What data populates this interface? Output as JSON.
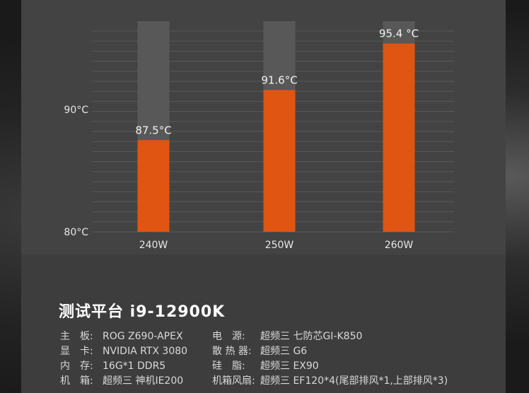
{
  "chart_data": {
    "type": "bar",
    "categories": [
      "240W",
      "250W",
      "260W"
    ],
    "values": [
      87.5,
      91.6,
      95.4
    ],
    "data_labels": [
      "87.5°C",
      "91.6°C",
      "95.4 °C"
    ],
    "ylim": [
      80,
      97
    ],
    "yticks": [
      80,
      90
    ],
    "ytick_labels": [
      "80°C",
      "90°C"
    ],
    "grid": true,
    "bar_color": "#e05512",
    "bg_bar_color": "#585858"
  },
  "platform": {
    "title": "测试平台 i9-12900K",
    "specs_left": [
      {
        "key": "主　板:",
        "value": "ROG Z690-APEX"
      },
      {
        "key": "显　卡:",
        "value": "NVIDIA RTX 3080"
      },
      {
        "key": "内　存:",
        "value": "16G*1 DDR5"
      },
      {
        "key": "机　箱:",
        "value": "超频三 神机IE200"
      }
    ],
    "specs_right": [
      {
        "key": "电　源:",
        "value": "超频三 七防芯GI-K850"
      },
      {
        "key": "散 热 器:",
        "value": "超频三 G6"
      },
      {
        "key": "硅　脂:",
        "value": "超频三 EX90"
      },
      {
        "key": "机箱风扇:",
        "value": "超频三 EF120*4(尾部排风*1,上部排风*3)"
      }
    ]
  }
}
